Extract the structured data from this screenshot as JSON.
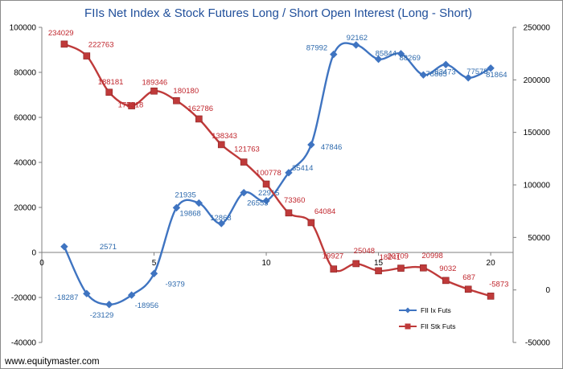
{
  "chart_data": {
    "type": "line",
    "title": "FIIs Net Index & Stock Futures Long / Short Open Interest  (Long - Short)",
    "x": [
      1,
      2,
      3,
      4,
      5,
      6,
      7,
      8,
      9,
      10,
      11,
      12,
      13,
      14,
      15,
      16,
      17,
      18,
      19,
      20
    ],
    "x_ticks": [
      "0",
      "5",
      "10",
      "15",
      "20"
    ],
    "xlim": [
      0,
      21
    ],
    "ylim_left": [
      -40000,
      100000
    ],
    "ylim_right": [
      -50000,
      250000
    ],
    "y_ticks_left": [
      "100000",
      "80000",
      "60000",
      "40000",
      "20000",
      "0",
      "-20000",
      "-40000"
    ],
    "y_ticks_right": [
      "250000",
      "200000",
      "150000",
      "100000",
      "50000",
      "0",
      "-50000"
    ],
    "grid": false,
    "legend_placement": "bottom-right",
    "series": [
      {
        "name": "FII Ix Futs",
        "axis": "left",
        "color": "#3f74c1",
        "marker": "diamond",
        "values": [
          2571,
          -18287,
          -23129,
          -18956,
          -9379,
          19868,
          21935,
          12863,
          26553,
          22915,
          35414,
          47846,
          87992,
          92162,
          85844,
          88269,
          78865,
          83473,
          77575,
          81864
        ],
        "labels": [
          "2571",
          "-18287",
          "-23129",
          "-18956",
          "-9379",
          "19868",
          "21935",
          "12863",
          "26553",
          "22915",
          "35414",
          "47846",
          "87992",
          "92162",
          "85844",
          "88269",
          "78865",
          "83473",
          "77575",
          "81864"
        ]
      },
      {
        "name": "FII Stk Futs",
        "axis": "right",
        "color": "#bf3a3a",
        "marker": "square",
        "values": [
          234029,
          222763,
          188181,
          175318,
          189346,
          180180,
          162786,
          138343,
          121763,
          100778,
          73360,
          64084,
          19927,
          25048,
          18241,
          20709,
          20998,
          9032,
          687,
          -5873
        ],
        "labels": [
          "234029",
          "222763",
          "188181",
          "175318",
          "189346",
          "180180",
          "162786",
          "138343",
          "121763",
          "100778",
          "73360",
          "64084",
          "19927",
          "25048",
          "18241",
          "20709",
          "20998",
          "9032",
          "687",
          "-5873"
        ]
      }
    ]
  },
  "footer": "www.equitymaster.com"
}
